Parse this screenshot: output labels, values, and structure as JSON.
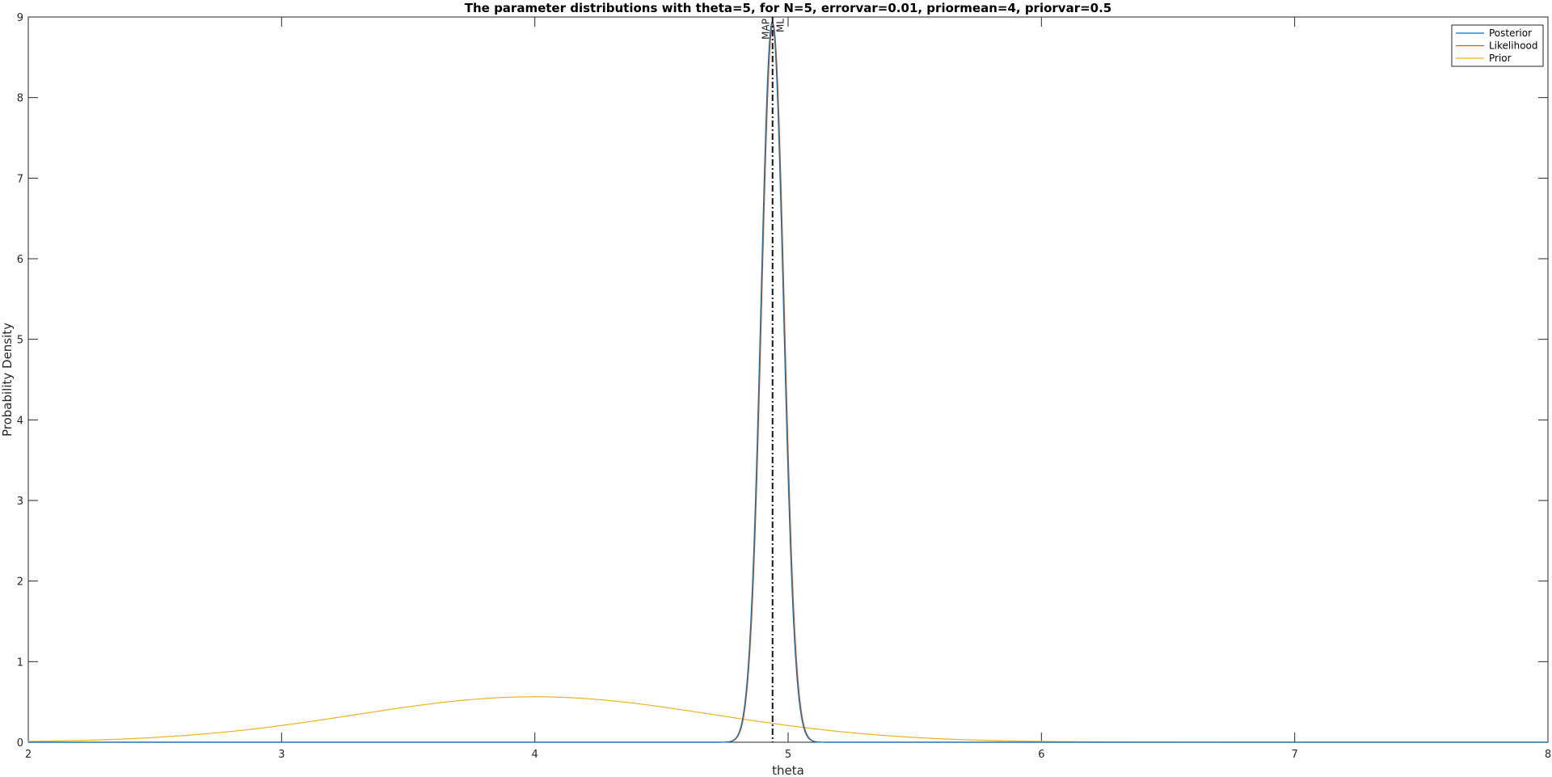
{
  "chart_data": {
    "type": "line",
    "title": "The parameter distributions with theta=5, for N=5, errorvar=0.01, priormean=4, priorvar=0.5",
    "xlabel": "theta",
    "ylabel": "Probability Density",
    "xlim": [
      2,
      8
    ],
    "ylim": [
      0,
      9
    ],
    "xticks": [
      2,
      3,
      4,
      5,
      6,
      7,
      8
    ],
    "yticks": [
      0,
      1,
      2,
      3,
      4,
      5,
      6,
      7,
      8,
      9
    ],
    "grid": false,
    "legend_position": "top-right",
    "series": [
      {
        "name": "Posterior",
        "color": "#0072BD",
        "distribution": "normal",
        "mean": 4.937,
        "variance": 0.001992,
        "peak": 8.94
      },
      {
        "name": "Likelihood",
        "color": "#D95319",
        "distribution": "normal",
        "mean": 4.94,
        "variance": 0.002,
        "peak": 8.92
      },
      {
        "name": "Prior",
        "color": "#EDB120",
        "distribution": "normal",
        "mean": 4,
        "variance": 0.5,
        "peak": 0.564
      }
    ],
    "annotations": [
      {
        "label": "MAP",
        "x": 4.937,
        "style": "dash-dot",
        "color": "#000000"
      },
      {
        "label": "ML",
        "x": 4.94,
        "style": "dash-dot",
        "color": "#000000"
      }
    ]
  }
}
